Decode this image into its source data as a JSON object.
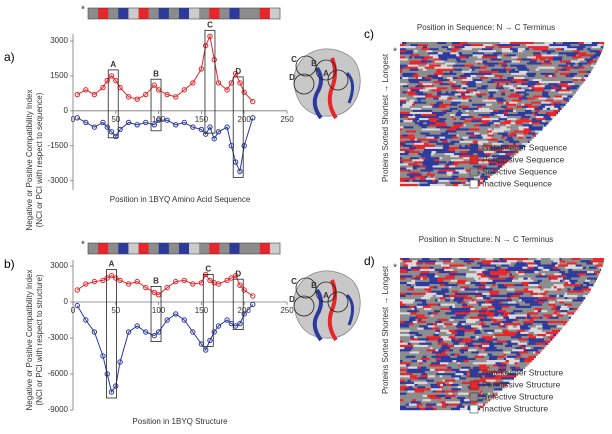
{
  "chart_data": [
    {
      "type": "line",
      "panel": "a)",
      "marker": "*",
      "xlabel": "Position in 1BYQ Amino Acid Sequence",
      "ylabel": [
        "Negative or Positive Compatibility Index",
        "(NCI or PCI with respect to sequence)"
      ],
      "x": [
        5,
        15,
        25,
        35,
        40,
        45,
        50,
        55,
        65,
        75,
        85,
        95,
        100,
        110,
        120,
        130,
        140,
        150,
        155,
        160,
        165,
        170,
        180,
        185,
        190,
        195,
        200,
        210
      ],
      "series": [
        {
          "color": "#e8262a",
          "values": [
            700,
            900,
            700,
            1000,
            1300,
            1500,
            1300,
            1000,
            600,
            500,
            700,
            1100,
            900,
            700,
            600,
            900,
            1200,
            1800,
            2800,
            3200,
            2200,
            1200,
            900,
            1200,
            1600,
            1200,
            800,
            400
          ]
        },
        {
          "color": "#2b3a9c",
          "values": [
            -300,
            -500,
            -700,
            -500,
            -700,
            -900,
            -1100,
            -800,
            -500,
            -600,
            -500,
            -600,
            -400,
            -400,
            -600,
            -500,
            -700,
            -800,
            -1000,
            -700,
            -1200,
            -900,
            -700,
            -1500,
            -2200,
            -2600,
            -1500,
            -300
          ]
        }
      ],
      "xlim": [
        0,
        250
      ],
      "xticks": [
        0,
        50,
        100,
        150,
        200,
        250
      ],
      "ylim": [
        -3400,
        3300
      ],
      "yticks": [
        -3000,
        -1500,
        0,
        1500,
        3000
      ],
      "annotations": [
        {
          "text": "A",
          "x": 47
        },
        {
          "text": "B",
          "x": 97
        },
        {
          "text": "C",
          "x": 160
        },
        {
          "text": "D",
          "x": 193
        }
      ],
      "structure_labels": [
        "C",
        "B",
        "D",
        "A"
      ]
    },
    {
      "type": "line",
      "panel": "b)",
      "marker": "*",
      "xlabel": "Position in 1BYQ Structure",
      "ylabel": [
        "Negative or Positive Compatibility Index",
        "(NCI or PCI with respect to structure)"
      ],
      "x": [
        5,
        15,
        25,
        35,
        40,
        45,
        50,
        55,
        65,
        75,
        85,
        95,
        100,
        110,
        120,
        130,
        140,
        150,
        155,
        160,
        165,
        170,
        180,
        185,
        190,
        195,
        200,
        210
      ],
      "series": [
        {
          "color": "#e8262a",
          "values": [
            1000,
            1500,
            1700,
            1800,
            2000,
            2200,
            2000,
            1800,
            1500,
            1700,
            1200,
            800,
            600,
            1200,
            1700,
            1800,
            1500,
            1600,
            2300,
            1800,
            1600,
            1500,
            1800,
            2000,
            2200,
            1400,
            1000,
            500
          ]
        },
        {
          "color": "#2b3a9c",
          "values": [
            -300,
            -1500,
            -2500,
            -4500,
            -6000,
            -7500,
            -7000,
            -5000,
            -2500,
            -2000,
            -2500,
            -2800,
            -2500,
            -1500,
            -1000,
            -1500,
            -2500,
            -3500,
            -4000,
            -3200,
            -2500,
            -2000,
            -1500,
            -1800,
            -2000,
            -1800,
            -1000,
            -200
          ]
        }
      ],
      "xlim": [
        0,
        250
      ],
      "xticks": [
        0,
        50,
        100,
        150,
        200,
        250
      ],
      "ylim": [
        -9000,
        3500
      ],
      "yticks": [
        -9000,
        -6000,
        -3000,
        0,
        3000
      ],
      "annotations": [
        {
          "text": "A",
          "x": 45
        },
        {
          "text": "B",
          "x": 97
        },
        {
          "text": "C",
          "x": 158
        },
        {
          "text": "D",
          "x": 193
        }
      ],
      "structure_labels": [
        "C",
        "B",
        "D",
        "A"
      ]
    },
    {
      "type": "heatmap",
      "panel": "c)",
      "marker": "*",
      "title": "Position in Sequence: N → C Terminus",
      "ylabel": "Proteins Sorted Shortest → Longest",
      "legend": [
        {
          "name": "Gatekeeper Sequence",
          "color": "#2b3a9c"
        },
        {
          "name": "Permissive Sequence",
          "color": "#e8262a"
        },
        {
          "name": "Selective Sequence",
          "color": "#8c8c8c"
        },
        {
          "name": "Inactive Sequence",
          "color": "#ffffff"
        }
      ]
    },
    {
      "type": "heatmap",
      "panel": "d)",
      "marker": "*",
      "title": "Position in Structure: N → C Terminus",
      "ylabel": "Proteins Sorted Shortest → Longest",
      "legend": [
        {
          "name": "Gatekeeper Structure",
          "color": "#2b3a9c"
        },
        {
          "name": "Permissive Structure",
          "color": "#e8262a"
        },
        {
          "name": "Selective Structure",
          "color": "#8c8c8c"
        },
        {
          "name": "Inactive Structure",
          "color": "#ffffff"
        }
      ]
    }
  ]
}
